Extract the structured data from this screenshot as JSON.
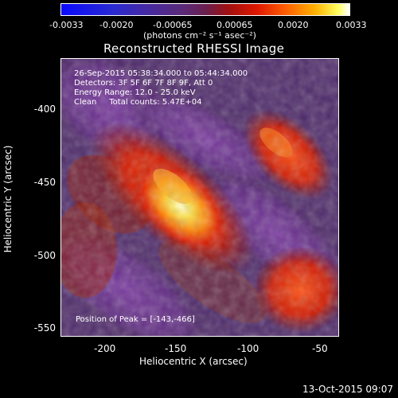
{
  "colorbar": {
    "ticks": [
      "-0.0033",
      "-0.0020",
      "-0.00065",
      "0.00065",
      "0.0020",
      "0.0033"
    ],
    "unit": "(photons cm⁻² s⁻¹ asec⁻²)"
  },
  "title": "Reconstructed RHESSI Image",
  "info": {
    "time": "26-Sep-2015 05:38:34.000 to 05:44:34.000",
    "detectors": "Detectors: 3F 5F 6F 7F 8F 9F, Att 0",
    "energy": "Energy Range: 12.0 - 25.0 keV",
    "clean": "Clean     Total counts: 5.47E+04"
  },
  "peak": "Position of Peak = [-143,-466]",
  "axes": {
    "xlabel": "Heliocentric X (arcsec)",
    "ylabel": "Heliocentric Y (arcsec)",
    "xticks": [
      "-200",
      "-150",
      "-100",
      "-50"
    ],
    "yticks": [
      "-400",
      "-450",
      "-500",
      "-550"
    ]
  },
  "datestamp": "13-Oct-2015 09:07"
}
